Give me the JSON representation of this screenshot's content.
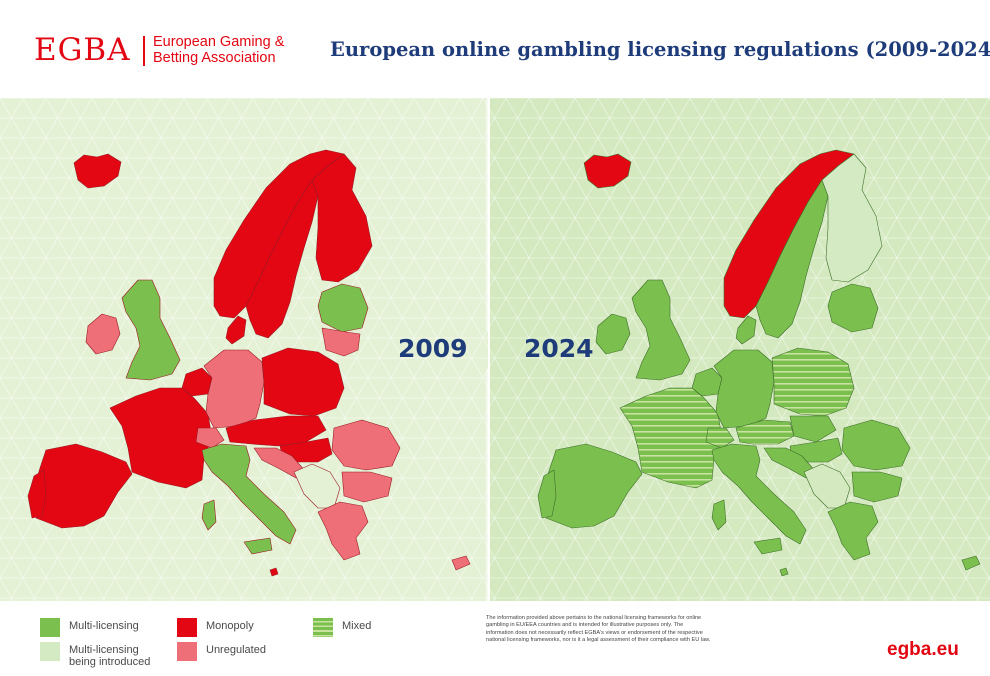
{
  "header": {
    "logo_abbr": "EGBA",
    "logo_full": "European Gaming & Betting Association",
    "title": "European online gambling licensing regulations (2009-2024)"
  },
  "maps": {
    "left_year": "2009",
    "right_year": "2024"
  },
  "colors": {
    "multi_licensing": "#7bbf4e",
    "being_introduced": "#d3eac3",
    "monopoly": "#e30613",
    "unregulated": "#ef6f79",
    "mixed_base": "#7bbf4e",
    "mixed_stripe": "#c8e39d",
    "sea": "#e7f3d9",
    "brand_red": "#e30613",
    "title_blue": "#1f3c7a"
  },
  "legend": {
    "items": [
      {
        "key": "multi",
        "label": "Multi-licensing"
      },
      {
        "key": "introduced",
        "label": "Multi-licensing being introduced"
      },
      {
        "key": "monopoly",
        "label": "Monopoly"
      },
      {
        "key": "unregulated",
        "label": "Unregulated"
      },
      {
        "key": "mixed",
        "label": "Mixed"
      }
    ]
  },
  "footer": {
    "disclaimer": "The information provided above pertains to the national licensing frameworks for online gambling in EU/EEA countries and is intended for illustrative purposes only. The information does not necessarily reflect EGBA's views or endorsement of the respective national licensing frameworks, nor is it a legal assessment of their compliance with EU law.",
    "website": "egba.eu"
  }
}
